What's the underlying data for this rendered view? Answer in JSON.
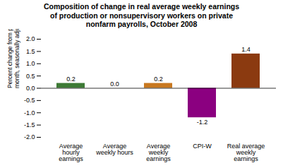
{
  "chart_data": {
    "type": "bar",
    "title": "Composition of change in real average weekly earnings\nof production or nonsupervisory workers on private\nnonfarm payrolls, October 2008",
    "categories": [
      "Average\nhourly\nearnings",
      "Average\nweekly hours",
      "Average\nweekly\nearnings",
      "CPI-W",
      "Real average\nweekly\nearnings"
    ],
    "values": [
      0.2,
      0.0,
      0.2,
      -1.2,
      1.4
    ],
    "value_labels": [
      "0.2",
      "0.0",
      "0.2",
      "-1.2",
      "1.4"
    ],
    "data_labels": true,
    "colors": [
      "#3d7a35",
      "#c87820",
      "#c87820",
      "#8b0080",
      "#8b3a10"
    ],
    "ylabel": "Percent change from preceding\nmonth, seasonally adjusted",
    "ylim": [
      -2.0,
      2.0
    ],
    "yticks": [
      {
        "value": -2.0,
        "label": "-2.0"
      },
      {
        "value": -1.5,
        "label": "-1.5"
      },
      {
        "value": -1.0,
        "label": "-1.0"
      },
      {
        "value": -0.5,
        "label": "-0.5"
      },
      {
        "value": 0.0,
        "label": "0.0"
      },
      {
        "value": 0.5,
        "label": "0.5"
      },
      {
        "value": 1.0,
        "label": "1.0"
      },
      {
        "value": 1.5,
        "label": "1.5"
      },
      {
        "value": 2.0,
        "label": "2.0"
      }
    ],
    "grid": false
  }
}
